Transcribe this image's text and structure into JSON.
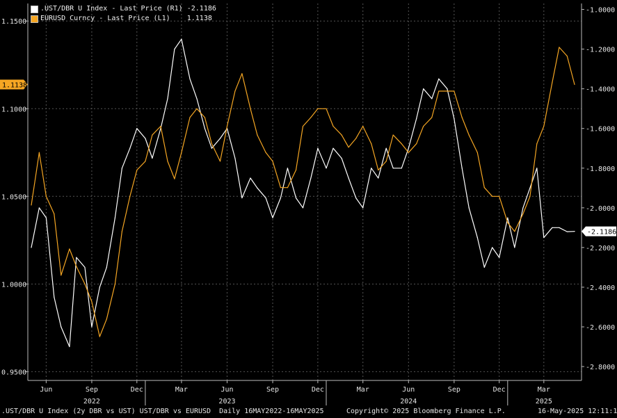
{
  "legend": {
    "items": [
      {
        "label": ".UST/DBR U Index - Last Price (R1)",
        "value": "-2.1186",
        "color": "#ffffff"
      },
      {
        "label": "EURUSD Curncy - Last Price (L1)",
        "value": "1.1138",
        "color": "#f5a623"
      }
    ]
  },
  "footer": {
    "left": ".UST/DBR U Index (2y DBR vs UST) UST/DBR vs EURUSD  Daily 16MAY2022-16MAY2025",
    "center": "Copyright© 2025 Bloomberg Finance L.P.",
    "right": "16-May-2025 12:11:17"
  },
  "chart_data": {
    "type": "line",
    "background": "#000000",
    "grid": true,
    "legend_position": "top-left",
    "x_range": [
      "2022-05-16",
      "2025-05-16"
    ],
    "x_ticks": [
      "Jun",
      "Sep",
      "Dec",
      "Mar",
      "Jun",
      "Sep",
      "Dec",
      "Mar",
      "Jun",
      "Sep",
      "Dec",
      "Mar"
    ],
    "x_tick_dates": [
      "2022-06-15",
      "2022-09-15",
      "2022-12-15",
      "2023-03-15",
      "2023-06-15",
      "2023-09-15",
      "2023-12-15",
      "2024-03-15",
      "2024-06-15",
      "2024-09-15",
      "2024-12-15",
      "2025-03-15"
    ],
    "year_labels": [
      "2022",
      "2023",
      "2024",
      "2025"
    ],
    "year_label_dates": [
      "2022-09-15",
      "2023-06-15",
      "2024-06-15",
      "2025-03-15"
    ],
    "left_axis": {
      "ylim": [
        0.945,
        1.16
      ],
      "ticks": [
        "0.9500",
        "1.0000",
        "1.0500",
        "1.1000",
        "1.1500"
      ]
    },
    "right_axis": {
      "ylim": [
        -2.87,
        -0.97
      ],
      "ticks": [
        "-1.0000",
        "-1.2000",
        "-1.4000",
        "-1.6000",
        "-1.8000",
        "-2.0000",
        "-2.2000",
        "-2.4000",
        "-2.6000",
        "-2.8000"
      ]
    },
    "series": [
      {
        "name": ".UST/DBR U Index",
        "axis": "right",
        "color": "#ffffff",
        "last_label": "-2.1186",
        "x": [
          "2022-05-16",
          "2022-06-01",
          "2022-06-15",
          "2022-07-01",
          "2022-07-15",
          "2022-08-01",
          "2022-08-15",
          "2022-09-01",
          "2022-09-15",
          "2022-10-01",
          "2022-10-15",
          "2022-11-01",
          "2022-11-15",
          "2022-12-01",
          "2022-12-15",
          "2023-01-01",
          "2023-01-15",
          "2023-02-01",
          "2023-02-15",
          "2023-03-01",
          "2023-03-15",
          "2023-04-01",
          "2023-04-15",
          "2023-05-01",
          "2023-05-15",
          "2023-06-01",
          "2023-06-15",
          "2023-07-01",
          "2023-07-15",
          "2023-08-01",
          "2023-08-15",
          "2023-09-01",
          "2023-09-15",
          "2023-10-01",
          "2023-10-15",
          "2023-11-01",
          "2023-11-15",
          "2023-12-01",
          "2023-12-15",
          "2024-01-01",
          "2024-01-15",
          "2024-02-01",
          "2024-02-15",
          "2024-03-01",
          "2024-03-15",
          "2024-04-01",
          "2024-04-15",
          "2024-05-01",
          "2024-05-15",
          "2024-06-01",
          "2024-06-15",
          "2024-07-01",
          "2024-07-15",
          "2024-08-01",
          "2024-08-15",
          "2024-09-01",
          "2024-09-15",
          "2024-10-01",
          "2024-10-15",
          "2024-11-01",
          "2024-11-15",
          "2024-12-01",
          "2024-12-15",
          "2025-01-01",
          "2025-01-15",
          "2025-02-01",
          "2025-02-15",
          "2025-03-01",
          "2025-03-15",
          "2025-04-01",
          "2025-04-15",
          "2025-05-01",
          "2025-05-16"
        ],
        "values": [
          -2.2,
          -2.0,
          -2.05,
          -2.45,
          -2.6,
          -2.7,
          -2.25,
          -2.3,
          -2.6,
          -2.4,
          -2.3,
          -2.05,
          -1.8,
          -1.7,
          -1.6,
          -1.65,
          -1.75,
          -1.6,
          -1.45,
          -1.2,
          -1.15,
          -1.35,
          -1.45,
          -1.6,
          -1.7,
          -1.65,
          -1.6,
          -1.75,
          -1.95,
          -1.85,
          -1.9,
          -1.95,
          -2.05,
          -1.95,
          -1.8,
          -1.95,
          -2.0,
          -1.85,
          -1.7,
          -1.8,
          -1.7,
          -1.75,
          -1.85,
          -1.95,
          -2.0,
          -1.8,
          -1.85,
          -1.7,
          -1.8,
          -1.8,
          -1.7,
          -1.55,
          -1.4,
          -1.45,
          -1.35,
          -1.4,
          -1.55,
          -1.8,
          -2.0,
          -2.15,
          -2.3,
          -2.2,
          -2.25,
          -2.05,
          -2.2,
          -2.0,
          -1.9,
          -1.8,
          -2.15,
          -2.1,
          -2.1,
          -2.12,
          -2.1186
        ]
      },
      {
        "name": "EURUSD Curncy",
        "axis": "left",
        "color": "#f5a623",
        "last_label": "1.1138",
        "x": [
          "2022-05-16",
          "2022-06-01",
          "2022-06-15",
          "2022-07-01",
          "2022-07-15",
          "2022-08-01",
          "2022-08-15",
          "2022-09-01",
          "2022-09-15",
          "2022-10-01",
          "2022-10-15",
          "2022-11-01",
          "2022-11-15",
          "2022-12-01",
          "2022-12-15",
          "2023-01-01",
          "2023-01-15",
          "2023-02-01",
          "2023-02-15",
          "2023-03-01",
          "2023-03-15",
          "2023-04-01",
          "2023-04-15",
          "2023-05-01",
          "2023-05-15",
          "2023-06-01",
          "2023-06-15",
          "2023-07-01",
          "2023-07-15",
          "2023-08-01",
          "2023-08-15",
          "2023-09-01",
          "2023-09-15",
          "2023-10-01",
          "2023-10-15",
          "2023-11-01",
          "2023-11-15",
          "2023-12-01",
          "2023-12-15",
          "2024-01-01",
          "2024-01-15",
          "2024-02-01",
          "2024-02-15",
          "2024-03-01",
          "2024-03-15",
          "2024-04-01",
          "2024-04-15",
          "2024-05-01",
          "2024-05-15",
          "2024-06-01",
          "2024-06-15",
          "2024-07-01",
          "2024-07-15",
          "2024-08-01",
          "2024-08-15",
          "2024-09-01",
          "2024-09-15",
          "2024-10-01",
          "2024-10-15",
          "2024-11-01",
          "2024-11-15",
          "2024-12-01",
          "2024-12-15",
          "2025-01-01",
          "2025-01-15",
          "2025-02-01",
          "2025-02-15",
          "2025-03-01",
          "2025-03-15",
          "2025-04-01",
          "2025-04-15",
          "2025-05-01",
          "2025-05-16"
        ],
        "values": [
          1.045,
          1.075,
          1.05,
          1.04,
          1.005,
          1.02,
          1.01,
          1.0,
          0.99,
          0.97,
          0.98,
          1.0,
          1.03,
          1.05,
          1.065,
          1.07,
          1.085,
          1.09,
          1.07,
          1.06,
          1.075,
          1.095,
          1.1,
          1.095,
          1.08,
          1.07,
          1.09,
          1.11,
          1.12,
          1.1,
          1.085,
          1.075,
          1.07,
          1.055,
          1.055,
          1.065,
          1.09,
          1.095,
          1.1,
          1.1,
          1.09,
          1.085,
          1.078,
          1.083,
          1.09,
          1.08,
          1.065,
          1.07,
          1.085,
          1.08,
          1.075,
          1.08,
          1.09,
          1.095,
          1.11,
          1.11,
          1.11,
          1.095,
          1.085,
          1.075,
          1.055,
          1.05,
          1.05,
          1.035,
          1.03,
          1.04,
          1.05,
          1.08,
          1.09,
          1.115,
          1.135,
          1.13,
          1.1138
        ]
      }
    ]
  }
}
